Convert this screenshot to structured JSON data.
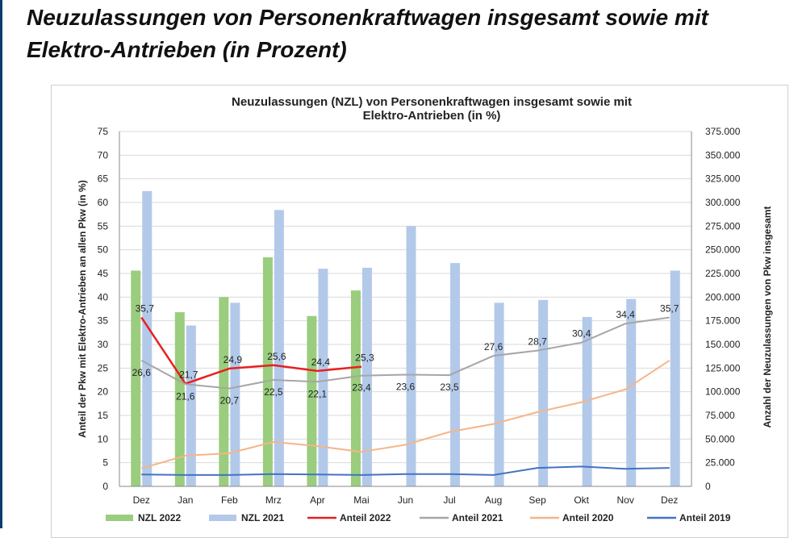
{
  "page": {
    "title": "Neuzulassungen von Personenkraftwagen insgesamt sowie mit\nElektro-Antrieben (in Prozent)"
  },
  "chart_data": {
    "type": "bar",
    "title": "Neuzulassungen (NZL) von Personenkraftwagen insgesamt sowie mit\nElektro-Antrieben (in %)",
    "ylabel_left": "Anteil der Pkw mit Elektro-Antrieben an allen Pkw (in %)",
    "ylabel_right": "Anzahl der Neuzulassungen von Pkw insgesamt",
    "ylim_left": [
      0,
      75
    ],
    "ylim_right": [
      0,
      375000
    ],
    "yticks_left": [
      "0",
      "5",
      "10",
      "15",
      "20",
      "25",
      "30",
      "35",
      "40",
      "45",
      "50",
      "55",
      "60",
      "65",
      "70",
      "75"
    ],
    "yticks_right": [
      "0",
      "25.000",
      "50.000",
      "75.000",
      "100.000",
      "125.000",
      "150.000",
      "175.000",
      "200.000",
      "225.000",
      "250.000",
      "275.000",
      "300.000",
      "325.000",
      "350.000",
      "375.000"
    ],
    "categories": [
      "Dez",
      "Jan",
      "Feb",
      "Mrz",
      "Apr",
      "Mai",
      "Jun",
      "Jul",
      "Aug",
      "Sep",
      "Okt",
      "Nov",
      "Dez"
    ],
    "grid": true,
    "legend_position": "bottom",
    "bar_series": [
      {
        "name": "NZL 2022",
        "axis": "right",
        "color": "#9acd7e",
        "values": [
          228000,
          184000,
          200000,
          242000,
          180000,
          207000,
          null,
          null,
          null,
          null,
          null,
          null,
          null
        ]
      },
      {
        "name": "NZL 2021",
        "axis": "right",
        "color": "#b3c9ea",
        "values": [
          312000,
          170000,
          194000,
          292000,
          230000,
          231000,
          275000,
          236000,
          194000,
          197000,
          179000,
          198000,
          228000
        ]
      }
    ],
    "line_series": [
      {
        "name": "Anteil 2022",
        "axis": "left",
        "color": "#e82020",
        "values": [
          35.7,
          21.7,
          24.9,
          25.6,
          24.4,
          25.3,
          null,
          null,
          null,
          null,
          null,
          null,
          null
        ],
        "labels": [
          "35,7",
          "21,7",
          "24,9",
          "25,6",
          "24,4",
          "25,3"
        ]
      },
      {
        "name": "Anteil 2021",
        "axis": "left",
        "color": "#a6a6a6",
        "values": [
          26.6,
          21.6,
          20.7,
          22.5,
          22.1,
          23.4,
          23.6,
          23.5,
          27.6,
          28.7,
          30.4,
          34.4,
          35.7
        ],
        "labels": [
          "26,6",
          "21,6",
          "20,7",
          "22,5",
          "22,1",
          "23,4",
          "23,6",
          "23,5",
          "27,6",
          "28,7",
          "30,4",
          "34,4",
          "35,7"
        ]
      },
      {
        "name": "Anteil 2020",
        "axis": "left",
        "color": "#f5b587",
        "values": [
          3.8,
          6.5,
          7.0,
          9.4,
          8.5,
          7.3,
          8.8,
          11.5,
          13.2,
          15.7,
          17.8,
          20.5,
          26.6
        ]
      },
      {
        "name": "Anteil 2019",
        "axis": "left",
        "color": "#4472c4",
        "values": [
          2.5,
          2.4,
          2.4,
          2.6,
          2.5,
          2.4,
          2.6,
          2.6,
          2.4,
          3.9,
          4.2,
          3.7,
          3.9
        ]
      }
    ]
  }
}
